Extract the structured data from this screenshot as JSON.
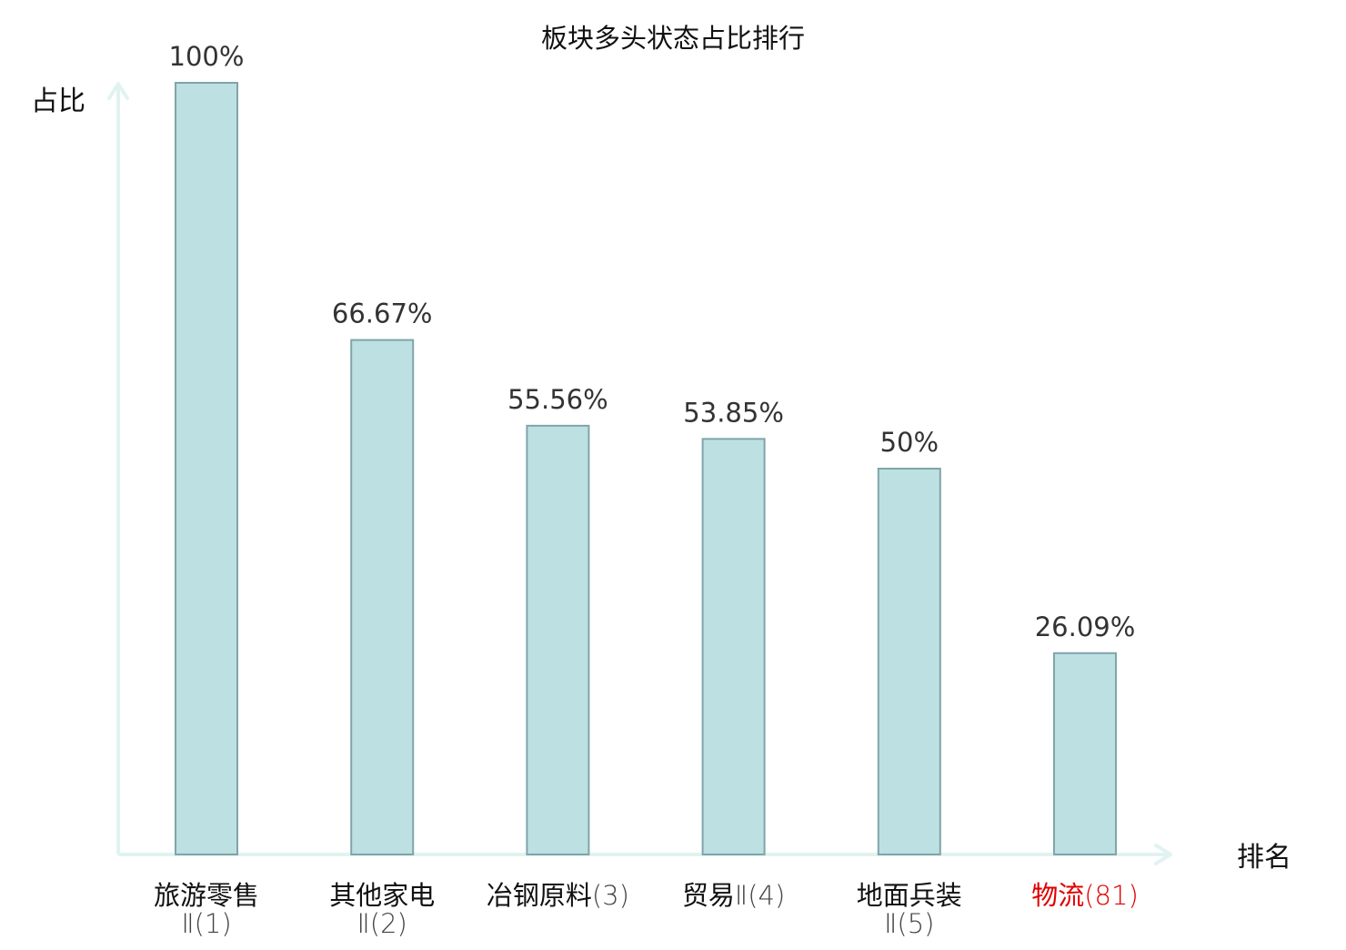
{
  "chart_data": {
    "type": "bar",
    "title": "板块多头状态占比排行",
    "ylabel": "占比",
    "xlabel": "排名",
    "ylim": [
      0,
      100
    ],
    "categories": [
      {
        "name": "旅游零售",
        "rank": "Ⅱ(1)",
        "highlight": false
      },
      {
        "name": "其他家电",
        "rank": "Ⅱ(2)",
        "highlight": false
      },
      {
        "name": "冶钢原料",
        "rank": "(3)",
        "highlight": false
      },
      {
        "name": "贸易",
        "rank": "Ⅱ(4)",
        "highlight": false
      },
      {
        "name": "地面兵装",
        "rank": "Ⅱ(5)",
        "highlight": false
      },
      {
        "name": "物流",
        "rank": "(81)",
        "highlight": true
      }
    ],
    "values": [
      100,
      66.67,
      55.56,
      53.85,
      50,
      26.09
    ],
    "value_labels": [
      "100%",
      "66.67%",
      "55.56%",
      "53.85%",
      "50%",
      "26.09%"
    ],
    "grid": false,
    "legend": "none"
  },
  "colors": {
    "bar_fill": "#bde0e3",
    "bar_stroke": "#7fa5aa",
    "axis": "#e1f3f1",
    "label_text": "#333333",
    "category_text": "#111111",
    "highlight_text": "#e00000"
  }
}
